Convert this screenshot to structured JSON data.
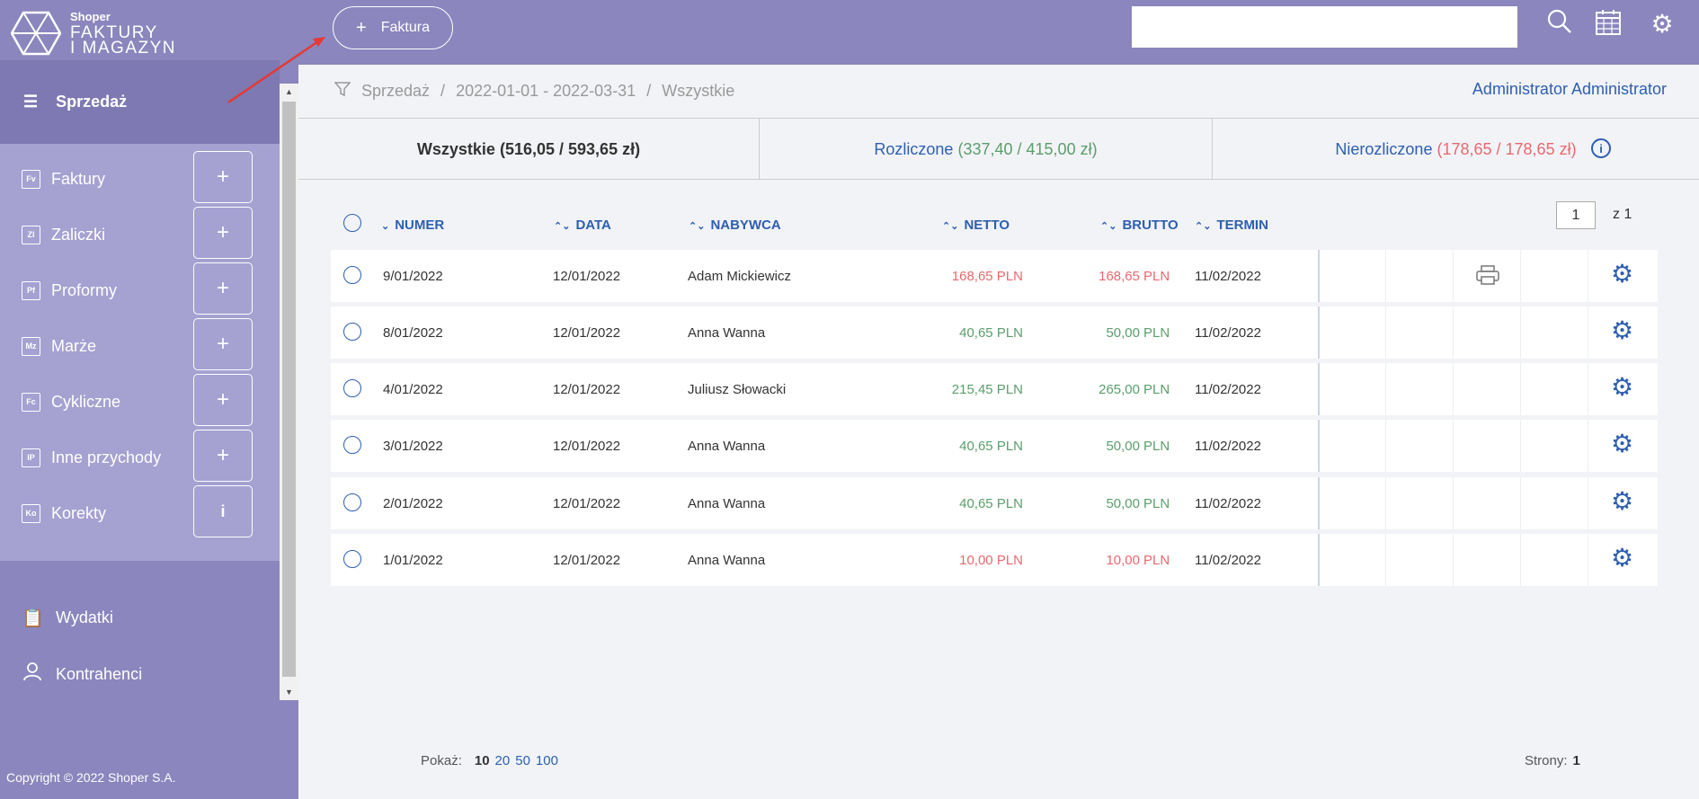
{
  "app": {
    "brand": "Shoper",
    "name_line1": "FAKTURY",
    "name_line2": "I MAGAZYN",
    "copyright": "Copyright © 2022 Shoper S.A."
  },
  "topbar": {
    "new_invoice_label": "Faktura",
    "search_placeholder": "",
    "icons": [
      "search-icon",
      "calendar-icon",
      "gear-icon"
    ]
  },
  "sidebar": {
    "active": "Sprzedaż",
    "sub_items": [
      {
        "label": "Faktury",
        "code": "Fv",
        "action": "+"
      },
      {
        "label": "Zaliczki",
        "code": "Zl",
        "action": "+"
      },
      {
        "label": "Proformy",
        "code": "Pf",
        "action": "+"
      },
      {
        "label": "Marże",
        "code": "Mz",
        "action": "+"
      },
      {
        "label": "Cykliczne",
        "code": "Fc",
        "action": "+"
      },
      {
        "label": "Inne przychody",
        "code": "IP",
        "action": "+"
      },
      {
        "label": "Korekty",
        "code": "Ko",
        "action": "i"
      }
    ],
    "bottom_items": [
      {
        "label": "Wydatki"
      },
      {
        "label": "Kontrahenci"
      }
    ]
  },
  "breadcrumb": {
    "items": [
      "Sprzedaż",
      "2022-01-01 - 2022-03-31",
      "Wszystkie"
    ],
    "separator": "/"
  },
  "user": {
    "name": "Administrator Administrator"
  },
  "tabs": [
    {
      "label": "Wszystkie",
      "amounts": "(516,05 / 593,65 zł)"
    },
    {
      "label": "Rozliczone",
      "amounts": "(337,40 / 415,00 zł)"
    },
    {
      "label": "Nierozliczone",
      "amounts": "(178,65 / 178,65 zł)"
    }
  ],
  "table": {
    "columns": [
      "NUMER",
      "DATA",
      "NABYWCA",
      "NETTO",
      "BRUTTO",
      "TERMIN"
    ],
    "rows": [
      {
        "numer": "9/01/2022",
        "data": "12/01/2022",
        "nabywca": "Adam Mickiewicz",
        "netto": "168,65 PLN",
        "brutto": "168,65",
        "currency": "PLN",
        "termin": "11/02/2022",
        "status": "unpaid",
        "printer": true
      },
      {
        "numer": "8/01/2022",
        "data": "12/01/2022",
        "nabywca": "Anna Wanna",
        "netto": "40,65 PLN",
        "brutto": "50,00",
        "currency": "PLN",
        "termin": "11/02/2022",
        "status": "paid",
        "printer": false
      },
      {
        "numer": "4/01/2022",
        "data": "12/01/2022",
        "nabywca": "Juliusz Słowacki",
        "netto": "215,45 PLN",
        "brutto": "265,00",
        "currency": "PLN",
        "termin": "11/02/2022",
        "status": "paid",
        "printer": false
      },
      {
        "numer": "3/01/2022",
        "data": "12/01/2022",
        "nabywca": "Anna Wanna",
        "netto": "40,65 PLN",
        "brutto": "50,00",
        "currency": "PLN",
        "termin": "11/02/2022",
        "status": "paid",
        "printer": false
      },
      {
        "numer": "2/01/2022",
        "data": "12/01/2022",
        "nabywca": "Anna Wanna",
        "netto": "40,65 PLN",
        "brutto": "50,00",
        "currency": "PLN",
        "termin": "11/02/2022",
        "status": "paid",
        "printer": false
      },
      {
        "numer": "1/01/2022",
        "data": "12/01/2022",
        "nabywca": "Anna Wanna",
        "netto": "10,00 PLN",
        "brutto": "10,00",
        "currency": "PLN",
        "termin": "11/02/2022",
        "status": "unpaid",
        "printer": false
      }
    ]
  },
  "pagination": {
    "current_page": "1",
    "of_label": "z 1",
    "show_label": "Pokaż:",
    "page_sizes": [
      "10",
      "20",
      "50",
      "100"
    ],
    "selected_size": "10",
    "pages_label": "Strony:",
    "pages_value": "1"
  },
  "colors": {
    "sidebar": "#8b86bd",
    "subnav": "#a5a1d1",
    "accent": "#2d5fb0",
    "paid": "#5a9e6a",
    "unpaid": "#e8696d"
  }
}
